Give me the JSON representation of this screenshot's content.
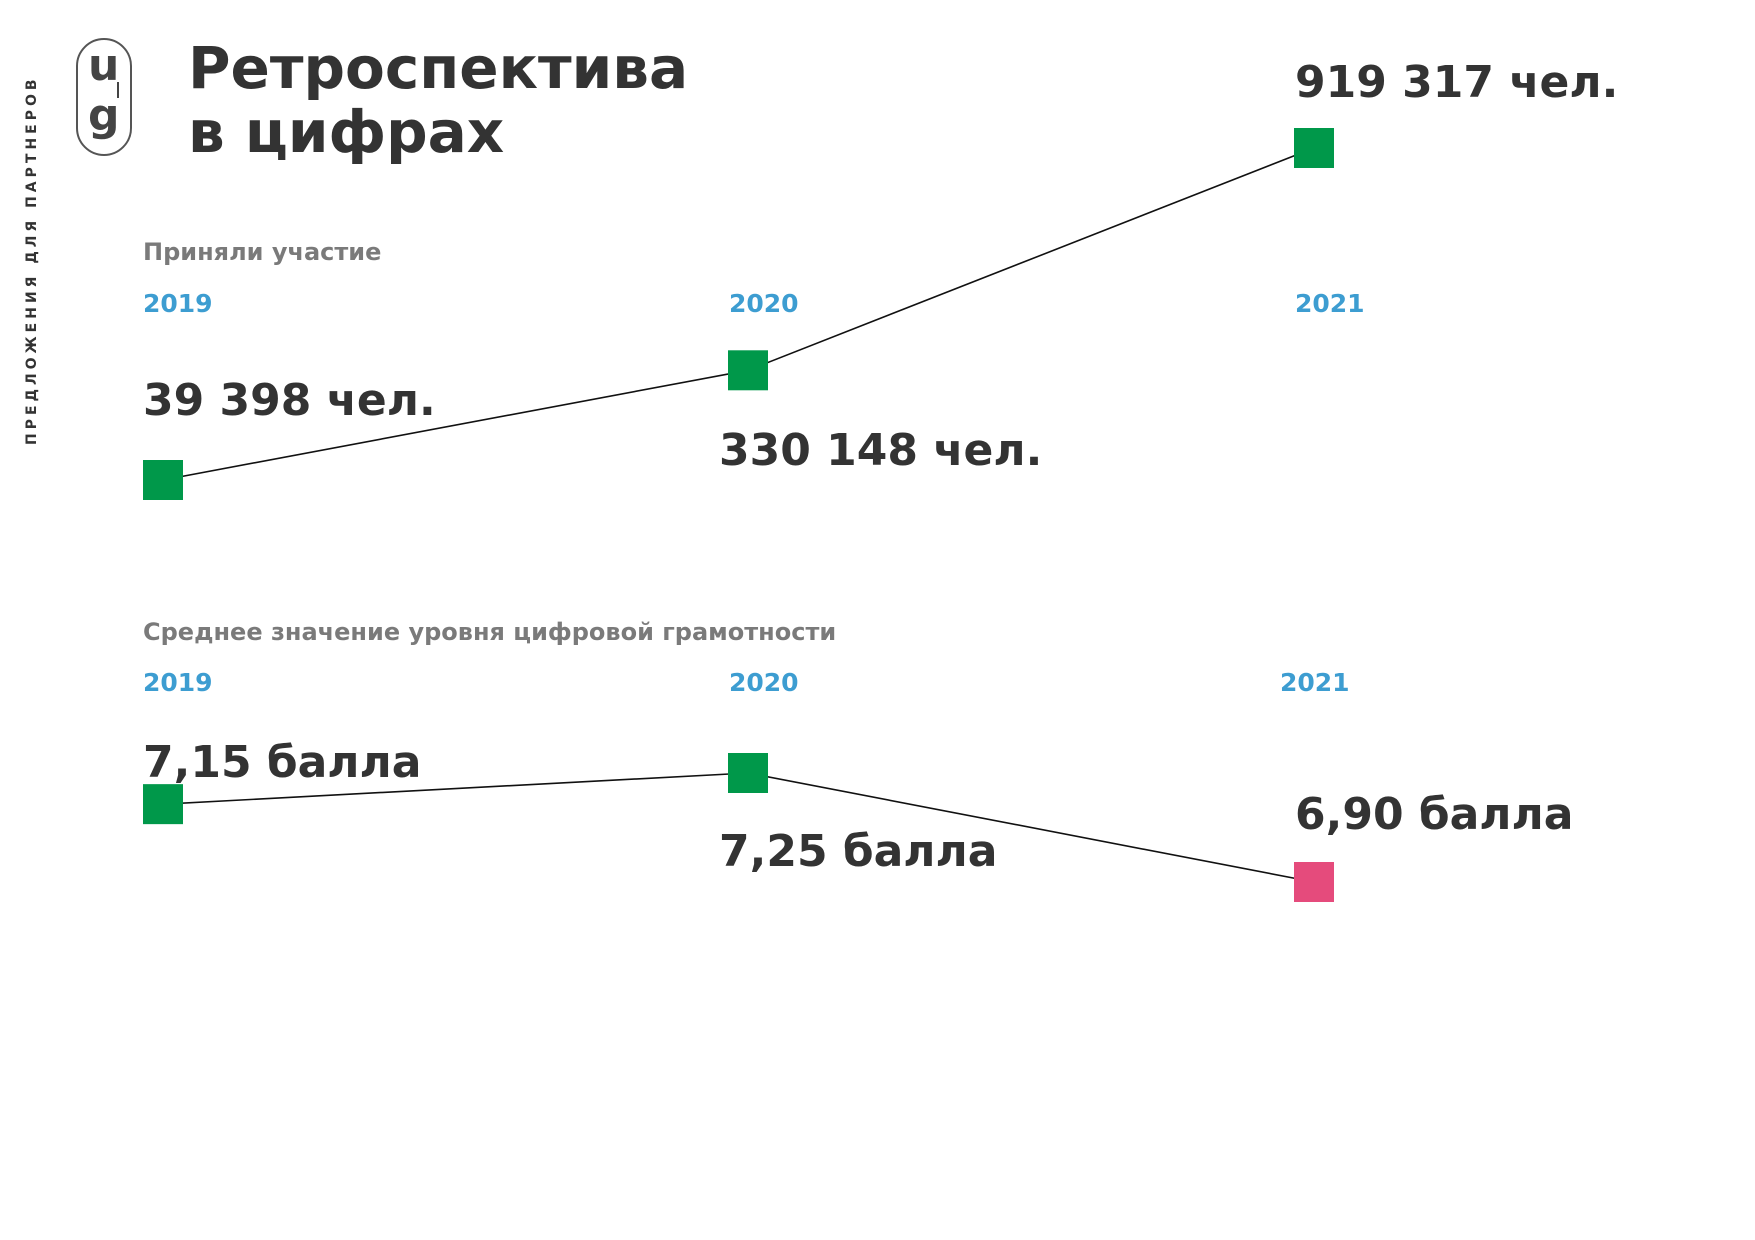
{
  "sidebar_text": "ПРЕДЛОЖЕНИЯ ДЛЯ ПАРТНЕРОВ",
  "logo": {
    "top": "u",
    "bottom": "g"
  },
  "title": "Ретроспектива\nв цифрах",
  "colors": {
    "marker": "#00984a",
    "highlight": "#e54b7c",
    "year": "#3d9dd1",
    "section": "#7a7a7a",
    "text": "#333333"
  },
  "chart_data": [
    {
      "type": "line",
      "title": "Приняли участие",
      "categories": [
        "2019",
        "2020",
        "2021"
      ],
      "values": [
        39398,
        330148,
        919317
      ],
      "value_labels": [
        "39 398 чел.",
        "330 148 чел.",
        "919 317 чел."
      ],
      "marker_colors": [
        "#00984a",
        "#00984a",
        "#00984a"
      ]
    },
    {
      "type": "line",
      "title": "Среднее значение уровня цифровой грамотности",
      "categories": [
        "2019",
        "2020",
        "2021"
      ],
      "values": [
        7.15,
        7.25,
        6.9
      ],
      "value_labels": [
        "7,15 балла",
        "7,25 балла",
        "6,90 балла"
      ],
      "marker_colors": [
        "#00984a",
        "#00984a",
        "#e54b7c"
      ]
    }
  ]
}
